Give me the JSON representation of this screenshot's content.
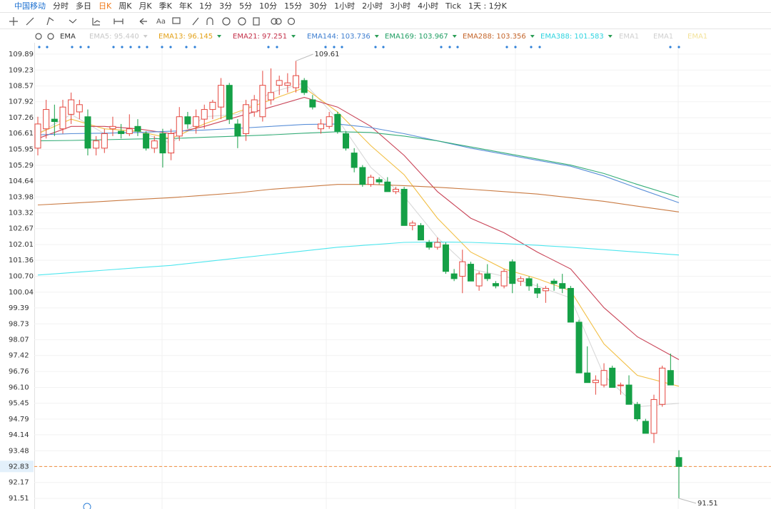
{
  "toolbar": {
    "tabs": [
      "中国移动",
      "分时",
      "多日",
      "日K",
      "周K",
      "月K",
      "季K",
      "年K",
      "1分",
      "3分",
      "5分",
      "10分",
      "15分",
      "30分",
      "1小时",
      "2小时",
      "3小时",
      "4小时",
      "Tick",
      "1天 : 1分K"
    ],
    "active_tab_index": 3,
    "text_tool": "Aa"
  },
  "chart_data": {
    "type": "candlestick",
    "indicator": "EMA",
    "ylim": [
      91.07,
      110.36
    ],
    "yticks": [
      109.89,
      109.23,
      108.57,
      107.92,
      107.26,
      106.61,
      105.95,
      105.29,
      104.64,
      103.98,
      103.32,
      102.67,
      102.01,
      101.36,
      {
        "value": 100.7,
        "label": "100.70"
      },
      100.04,
      99.39,
      98.73,
      98.07,
      97.42,
      96.76,
      {
        "value": 96.1,
        "label": "96.10"
      },
      95.45,
      94.79,
      94.14,
      93.48,
      92.83,
      92.17,
      91.51
    ],
    "grid": true,
    "current_price": 92.83,
    "up_color": "#e5473f",
    "down_color": "#15a046",
    "ohlc": [
      [
        106.0,
        107.3,
        105.7,
        107.0
      ],
      [
        106.8,
        108.0,
        106.4,
        107.6
      ],
      [
        107.2,
        107.8,
        106.5,
        107.1
      ],
      [
        106.8,
        108.0,
        106.6,
        107.7
      ],
      [
        107.4,
        108.3,
        107.0,
        108.0
      ],
      [
        107.5,
        108.0,
        107.2,
        107.8
      ],
      [
        107.3,
        107.6,
        105.7,
        106.0
      ],
      [
        106.0,
        106.5,
        105.7,
        106.3
      ],
      [
        106.0,
        106.8,
        105.8,
        106.6
      ],
      [
        106.8,
        107.3,
        106.5,
        106.9
      ],
      [
        106.7,
        107.0,
        106.4,
        106.6
      ],
      [
        106.6,
        107.4,
        106.5,
        106.8
      ],
      [
        106.9,
        107.2,
        106.5,
        106.7
      ],
      [
        106.6,
        106.7,
        105.9,
        106.0
      ],
      [
        106.0,
        106.5,
        105.8,
        106.3
      ],
      [
        106.6,
        106.8,
        105.2,
        105.8
      ],
      [
        105.8,
        106.8,
        105.5,
        106.6
      ],
      [
        106.5,
        107.7,
        106.3,
        107.3
      ],
      [
        107.3,
        107.5,
        106.8,
        107.0
      ],
      [
        106.9,
        107.6,
        106.6,
        107.3
      ],
      [
        107.2,
        107.8,
        106.8,
        107.6
      ],
      [
        107.6,
        108.0,
        107.2,
        107.9
      ],
      [
        107.7,
        108.9,
        107.2,
        108.6
      ],
      [
        108.6,
        108.7,
        107.0,
        107.2
      ],
      [
        107.0,
        107.2,
        106.0,
        106.5
      ],
      [
        106.6,
        108.0,
        106.3,
        107.8
      ],
      [
        107.5,
        108.2,
        107.3,
        108.0
      ],
      [
        107.3,
        109.2,
        107.1,
        108.6
      ],
      [
        108.0,
        109.3,
        107.8,
        108.3
      ],
      [
        108.6,
        109.0,
        108.2,
        108.8
      ],
      [
        108.6,
        109.1,
        108.3,
        108.7
      ],
      [
        108.5,
        109.61,
        108.3,
        109.0
      ],
      [
        108.8,
        108.9,
        108.2,
        108.3
      ],
      [
        108.0,
        108.2,
        107.6,
        107.7
      ],
      [
        106.8,
        107.2,
        106.6,
        107.0
      ],
      [
        106.9,
        107.5,
        106.8,
        107.3
      ],
      [
        107.4,
        107.5,
        106.6,
        106.7
      ],
      [
        106.6,
        106.7,
        105.9,
        106.0
      ],
      [
        105.8,
        106.0,
        105.0,
        105.2
      ],
      [
        105.2,
        105.3,
        104.4,
        104.5
      ],
      [
        104.5,
        104.9,
        104.4,
        104.8
      ],
      [
        104.7,
        104.8,
        104.5,
        104.6
      ],
      [
        104.6,
        104.8,
        104.2,
        104.2
      ],
      [
        104.2,
        104.4,
        104.1,
        104.3
      ],
      [
        104.3,
        104.4,
        102.8,
        102.8
      ],
      [
        102.8,
        103.0,
        102.6,
        102.9
      ],
      [
        102.8,
        102.9,
        102.2,
        102.2
      ],
      [
        102.1,
        102.2,
        101.8,
        101.9
      ],
      [
        101.9,
        102.3,
        101.8,
        102.1
      ],
      [
        102.0,
        102.1,
        100.8,
        100.9
      ],
      [
        100.8,
        101.0,
        100.5,
        100.6
      ],
      [
        100.7,
        101.8,
        100.0,
        101.3
      ],
      [
        101.2,
        101.3,
        100.5,
        100.5
      ],
      [
        100.3,
        100.9,
        100.1,
        100.8
      ],
      [
        100.8,
        101.2,
        100.5,
        100.6
      ],
      [
        100.4,
        100.5,
        100.2,
        100.3
      ],
      [
        100.3,
        101.0,
        100.2,
        100.9
      ],
      [
        101.3,
        101.4,
        100.0,
        100.4
      ],
      [
        100.5,
        100.7,
        100.3,
        100.6
      ],
      [
        100.6,
        100.7,
        100.1,
        100.3
      ],
      [
        100.2,
        100.4,
        99.8,
        100.0
      ],
      [
        100.1,
        100.3,
        99.6,
        100.2
      ],
      [
        100.5,
        100.6,
        100.1,
        100.4
      ],
      [
        100.4,
        100.8,
        100.0,
        100.2
      ],
      [
        100.2,
        100.3,
        98.8,
        98.8
      ],
      [
        98.8,
        98.9,
        96.7,
        96.7
      ],
      [
        96.7,
        97.8,
        96.3,
        96.3
      ],
      [
        96.3,
        96.6,
        95.8,
        96.4
      ],
      [
        96.2,
        97.1,
        96.1,
        96.8
      ],
      [
        96.9,
        97.0,
        96.1,
        96.1
      ],
      [
        96.2,
        96.3,
        95.8,
        96.2
      ],
      [
        96.2,
        96.6,
        95.4,
        95.4
      ],
      [
        95.4,
        95.5,
        94.7,
        94.8
      ],
      [
        94.7,
        94.8,
        94.2,
        94.2
      ],
      [
        94.2,
        95.8,
        93.8,
        95.6
      ],
      [
        95.4,
        97.0,
        95.3,
        96.9
      ],
      [
        96.8,
        97.5,
        96.2,
        96.2
      ],
      [
        93.2,
        93.5,
        91.51,
        92.83
      ]
    ],
    "ema_x": [
      0,
      4,
      8,
      12,
      16,
      20,
      24,
      28,
      32,
      36,
      40,
      44,
      48,
      52,
      56,
      60,
      64,
      68,
      72,
      77
    ],
    "series": [
      {
        "name": "EMA5: 95.440",
        "color": "#d8d8d8",
        "label_color": "#c8c8c8",
        "values": [
          106.6,
          107.4,
          106.6,
          106.7,
          106.2,
          107.3,
          107.4,
          108.3,
          108.7,
          107.2,
          105.2,
          104.0,
          102.3,
          101.0,
          100.7,
          100.3,
          99.8,
          96.6,
          95.3,
          95.44
        ]
      },
      {
        "name": "EMA13: 96.145",
        "color": "#f2bf45",
        "label_color": "#e3a21a",
        "values": [
          106.6,
          107.2,
          106.8,
          106.7,
          106.4,
          107.0,
          107.5,
          108.0,
          108.5,
          107.5,
          106.1,
          104.9,
          103.1,
          101.7,
          101.0,
          100.6,
          100.1,
          97.9,
          96.6,
          96.15
        ]
      },
      {
        "name": "EMA21: 97.251",
        "color": "#c94457",
        "label_color": "#c4314a",
        "values": [
          106.4,
          106.9,
          106.9,
          106.8,
          106.6,
          106.9,
          107.3,
          107.7,
          108.1,
          107.7,
          106.9,
          105.7,
          104.2,
          103.1,
          102.5,
          101.7,
          101.0,
          99.4,
          98.2,
          97.25
        ]
      },
      {
        "name": "EMA144: 103.736",
        "color": "#5a8fd8",
        "label_color": "#3f7fd0",
        "values": [
          106.55,
          106.6,
          106.62,
          106.65,
          106.7,
          106.75,
          106.82,
          106.9,
          106.98,
          107.0,
          106.85,
          106.6,
          106.3,
          106.0,
          105.75,
          105.5,
          105.25,
          104.85,
          104.35,
          103.74
        ]
      },
      {
        "name": "EMA169: 103.967",
        "color": "#35ad78",
        "label_color": "#1f9e63",
        "values": [
          106.3,
          106.32,
          106.35,
          106.38,
          106.4,
          106.45,
          106.5,
          106.55,
          106.62,
          106.68,
          106.65,
          106.5,
          106.3,
          106.05,
          105.8,
          105.55,
          105.3,
          104.95,
          104.5,
          103.97
        ]
      },
      {
        "name": "EMA288: 103.356",
        "color": "#c97a42",
        "label_color": "#c4652a",
        "values": [
          103.65,
          103.72,
          103.8,
          103.88,
          103.95,
          104.05,
          104.15,
          104.3,
          104.4,
          104.5,
          104.5,
          104.45,
          104.38,
          104.3,
          104.2,
          104.1,
          103.95,
          103.8,
          103.6,
          103.36
        ]
      },
      {
        "name": "EMA388: 101.583",
        "color": "#4ee6ee",
        "label_color": "#2fd4e0",
        "values": [
          100.75,
          100.85,
          100.95,
          101.05,
          101.15,
          101.3,
          101.45,
          101.6,
          101.75,
          101.9,
          102.0,
          102.1,
          102.12,
          102.1,
          102.05,
          101.98,
          101.9,
          101.8,
          101.7,
          101.58
        ]
      }
    ],
    "inactive_indicators": [
      {
        "name": "EMA1",
        "color": "#d0d0d0"
      },
      {
        "name": "EMA1",
        "color": "#d0d0d0"
      },
      {
        "name": "EMA1",
        "color": "#f3e29a"
      }
    ],
    "annotations": [
      "109.61",
      "91.51"
    ]
  }
}
